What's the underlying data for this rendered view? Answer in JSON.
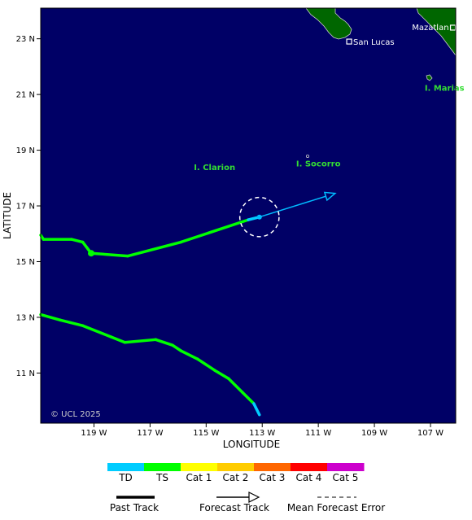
{
  "map": {
    "copyright": "© UCL 2025",
    "axes": {
      "xlabel": "LONGITUDE",
      "ylabel": "LATITUDE",
      "lon_range": [
        -120.9,
        -106.1
      ],
      "lat_range": [
        9.2,
        24.1
      ],
      "lon_ticks": [
        {
          "value": -119,
          "label": "119 W"
        },
        {
          "value": -117,
          "label": "117 W"
        },
        {
          "value": -115,
          "label": "115 W"
        },
        {
          "value": -113,
          "label": "113 W"
        },
        {
          "value": -111,
          "label": "111 W"
        },
        {
          "value": -109,
          "label": "109 W"
        },
        {
          "value": -107,
          "label": "107 W"
        }
      ],
      "lat_ticks": [
        {
          "value": 23,
          "label": "23 N"
        },
        {
          "value": 21,
          "label": "21 N"
        },
        {
          "value": 19,
          "label": "19 N"
        },
        {
          "value": 17,
          "label": "17 N"
        },
        {
          "value": 15,
          "label": "15 N"
        },
        {
          "value": 13,
          "label": "13 N"
        },
        {
          "value": 11,
          "label": "11 N"
        }
      ]
    },
    "places": [
      {
        "name": "Mazatlan",
        "lon": -106.2,
        "lat": 23.4,
        "marker": "square",
        "color": "#ffffff"
      },
      {
        "name": "San Lucas",
        "lon": -109.9,
        "lat": 22.9,
        "marker": "square",
        "color": "#ffffff"
      },
      {
        "name": "I. Marias",
        "lon": -106.5,
        "lat": 21.6,
        "marker": "island",
        "color": "#33dd33"
      },
      {
        "name": "I. Socorro",
        "lon": -111.0,
        "lat": 18.8,
        "marker": "island",
        "color": "#33dd33"
      },
      {
        "name": "I. Clarion",
        "lon": -114.7,
        "lat": 18.4,
        "marker": "none",
        "color": "#33dd33"
      }
    ],
    "tracks": [
      {
        "name": "current-storm",
        "past": [
          {
            "lon": -120.9,
            "lat": 15.95,
            "category": "TS"
          },
          {
            "lon": -120.8,
            "lat": 15.8,
            "category": "TS"
          },
          {
            "lon": -119.8,
            "lat": 15.8,
            "category": "TS"
          },
          {
            "lon": -119.4,
            "lat": 15.7,
            "category": "TS"
          },
          {
            "lon": -119.1,
            "lat": 15.3,
            "category": "TS"
          },
          {
            "lon": -117.8,
            "lat": 15.2,
            "category": "TS"
          },
          {
            "lon": -115.9,
            "lat": 15.7,
            "category": "TS"
          },
          {
            "lon": -113.5,
            "lat": 16.5,
            "category": "TS"
          },
          {
            "lon": -113.1,
            "lat": 16.6,
            "category": "TD"
          }
        ],
        "fix_marker": {
          "lon": -119.1,
          "lat": 15.3,
          "category": "TS"
        },
        "current_position": {
          "lon": -113.1,
          "lat": 16.6
        },
        "mean_forecast_error_radius_deg": 0.7,
        "forecast": [
          {
            "lon": -113.1,
            "lat": 16.6
          },
          {
            "lon": -110.4,
            "lat": 17.45
          }
        ]
      },
      {
        "name": "previous-storm",
        "past": [
          {
            "lon": -120.9,
            "lat": 13.1,
            "category": "TS"
          },
          {
            "lon": -120.2,
            "lat": 12.9,
            "category": "TS"
          },
          {
            "lon": -119.4,
            "lat": 12.7,
            "category": "TS"
          },
          {
            "lon": -118.4,
            "lat": 12.3,
            "category": "TS"
          },
          {
            "lon": -117.9,
            "lat": 12.1,
            "category": "TS"
          },
          {
            "lon": -116.8,
            "lat": 12.2,
            "category": "TS"
          },
          {
            "lon": -116.2,
            "lat": 12.0,
            "category": "TS"
          },
          {
            "lon": -115.9,
            "lat": 11.8,
            "category": "TS"
          },
          {
            "lon": -115.3,
            "lat": 11.5,
            "category": "TS"
          },
          {
            "lon": -114.7,
            "lat": 11.1,
            "category": "TS"
          },
          {
            "lon": -114.2,
            "lat": 10.8,
            "category": "TS"
          },
          {
            "lon": -113.7,
            "lat": 10.3,
            "category": "TS"
          },
          {
            "lon": -113.3,
            "lat": 9.9,
            "category": "TS"
          },
          {
            "lon": -113.1,
            "lat": 9.5,
            "category": "TD"
          }
        ]
      }
    ],
    "colors": {
      "ocean": "#000066",
      "land": "#006600",
      "place_label": "#ffffff",
      "island_label": "#33dd33",
      "current_position": "#00bbff",
      "forecast_error": "#ffffff"
    }
  },
  "legend": {
    "categories": [
      {
        "label": "TD",
        "color": "#00ccff"
      },
      {
        "label": "TS",
        "color": "#00ff00"
      },
      {
        "label": "Cat 1",
        "color": "#ffff00"
      },
      {
        "label": "Cat 2",
        "color": "#ffcc00"
      },
      {
        "label": "Cat 3",
        "color": "#ff6600"
      },
      {
        "label": "Cat 4",
        "color": "#ff0000"
      },
      {
        "label": "Cat 5",
        "color": "#cc00cc"
      }
    ],
    "past_track_label": "Past Track",
    "forecast_track_label": "Forecast Track",
    "mean_error_label": "Mean Forecast Error"
  }
}
